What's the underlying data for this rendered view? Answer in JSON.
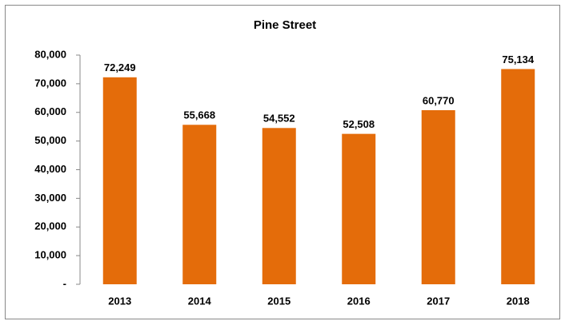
{
  "chart_data": {
    "type": "bar",
    "title": "Pine Street",
    "categories": [
      "2013",
      "2014",
      "2015",
      "2016",
      "2017",
      "2018"
    ],
    "values": [
      72249,
      55668,
      54552,
      52508,
      60770,
      75134
    ],
    "value_labels": [
      "72,249",
      "55,668",
      "54,552",
      "52,508",
      "60,770",
      "75,134"
    ],
    "color": "#e46c0a",
    "ylim": [
      0,
      80000
    ],
    "yticks": [
      {
        "value": 0,
        "label": "-"
      },
      {
        "value": 10000,
        "label": "10,000"
      },
      {
        "value": 20000,
        "label": "20,000"
      },
      {
        "value": 30000,
        "label": "30,000"
      },
      {
        "value": 40000,
        "label": "40,000"
      },
      {
        "value": 50000,
        "label": "50,000"
      },
      {
        "value": 60000,
        "label": "60,000"
      },
      {
        "value": 70000,
        "label": "70,000"
      },
      {
        "value": 80000,
        "label": "80,000"
      }
    ],
    "grid": false
  }
}
